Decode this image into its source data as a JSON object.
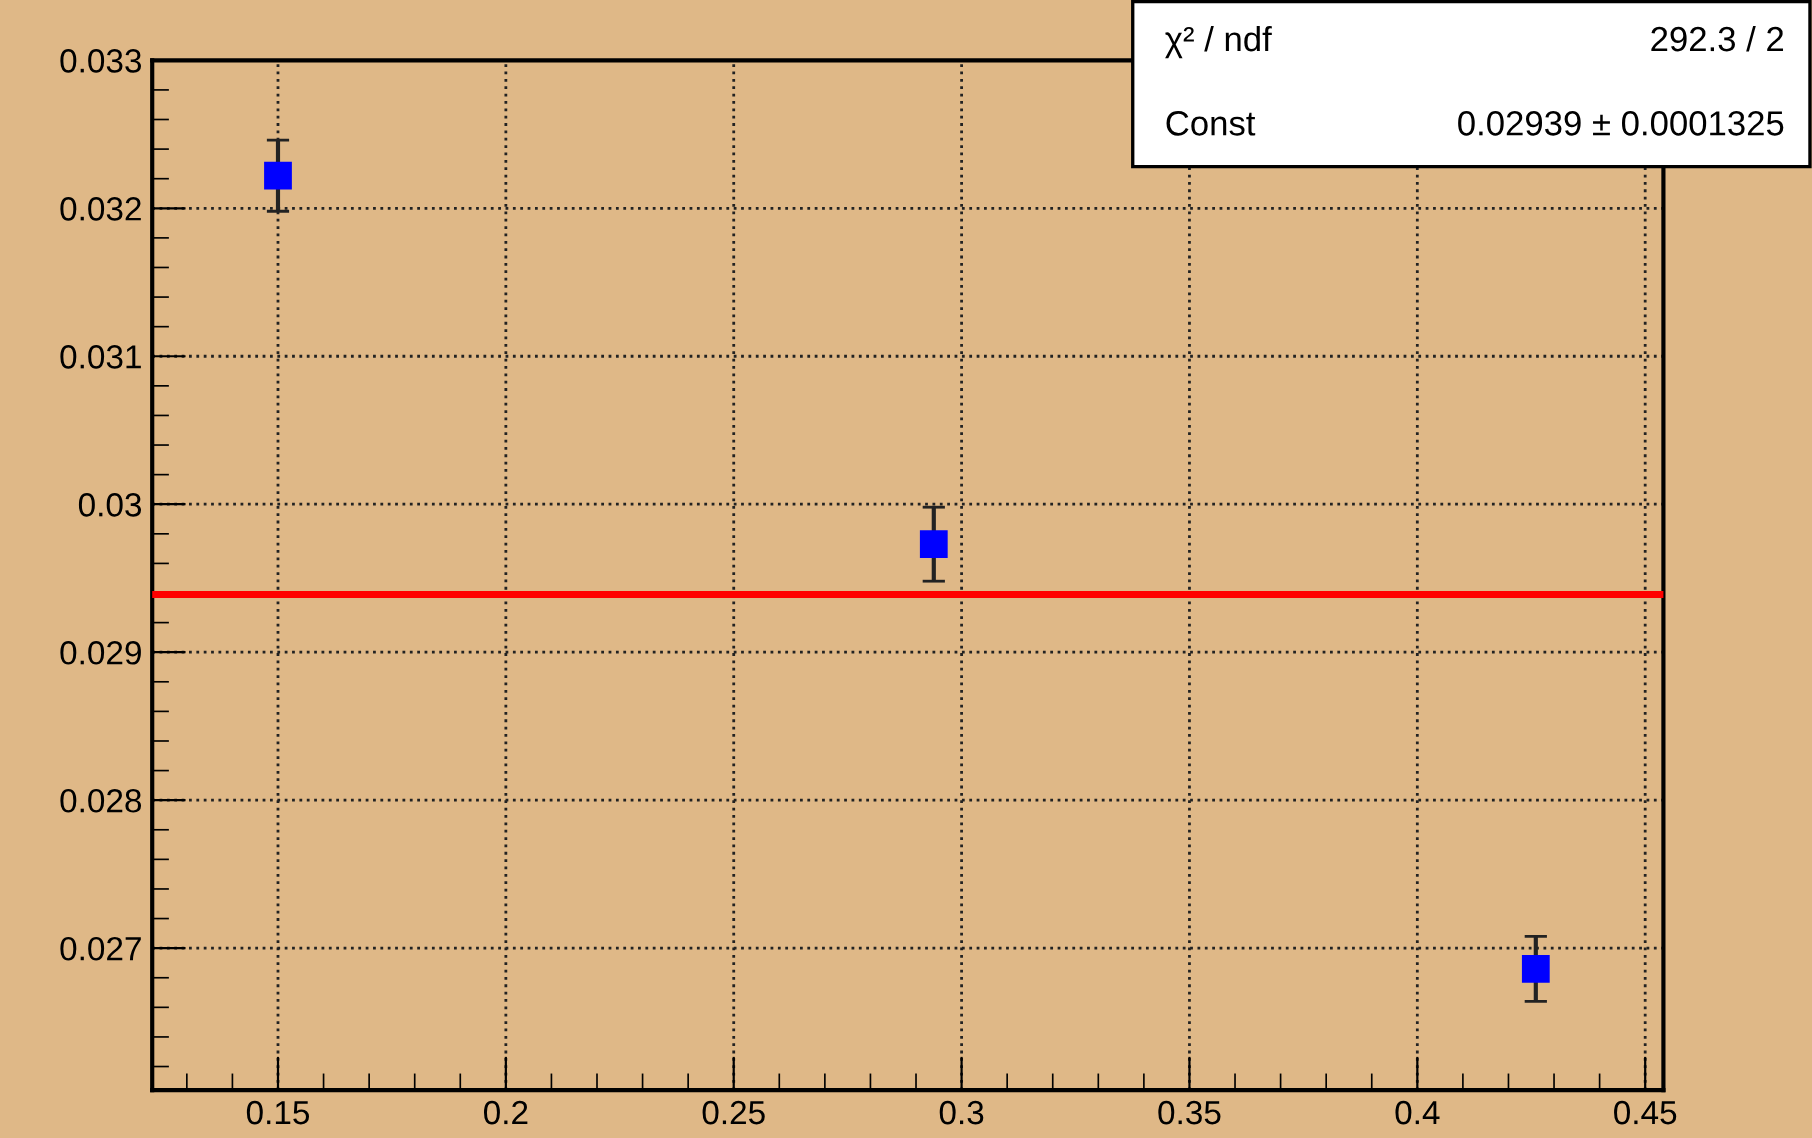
{
  "chart_data": {
    "type": "scatter",
    "series": [
      {
        "color": "#0000ff",
        "x": [
          0.15,
          0.2939,
          0.426
        ],
        "values": [
          0.03222,
          0.02973,
          0.02686
        ],
        "errors": [
          0.00024,
          0.00025,
          0.00022
        ]
      }
    ],
    "marker": "square",
    "ref_lines": [
      {
        "axis": "y",
        "value": 0.02939,
        "color": "#ff0000",
        "line_style": "solid"
      }
    ],
    "xlim": [
      0.1224,
      0.454
    ],
    "ylim": [
      0.02604,
      0.033
    ],
    "xticks": [
      0.15,
      0.2,
      0.25,
      0.3,
      0.35,
      0.4,
      0.45
    ],
    "yticks": [
      0.027,
      0.028,
      0.029,
      0.03,
      0.031,
      0.032,
      0.033
    ],
    "grid": true,
    "annotations": [
      "χ² / ndf",
      "292.3 / 2",
      "Const",
      "0.02939 ± 0.0001325"
    ]
  }
}
